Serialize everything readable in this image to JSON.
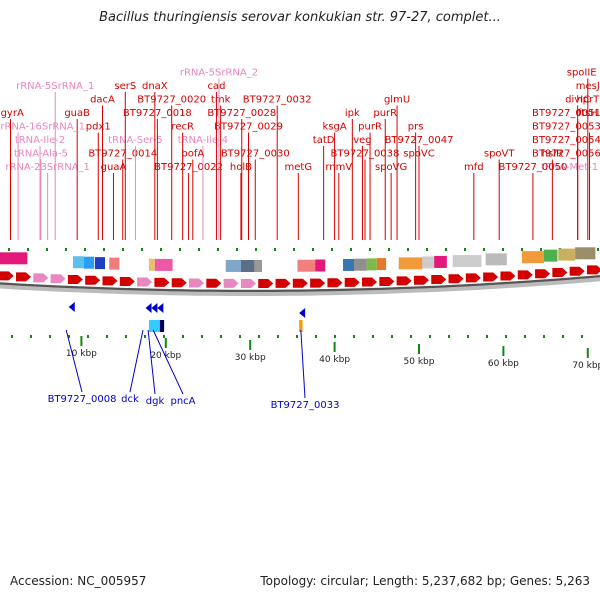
{
  "title": "Bacillus thuringiensis serovar konkukian str. 97-27, complet...",
  "footer": {
    "accession": "Accession: NC_005957",
    "topology": "Topology: circular; Length: 5,237,682 bp; Genes: 5,263"
  },
  "colors": {
    "gene": "#d40000",
    "rna": "#e887c0",
    "minus": "#0000cc",
    "axis": "#888888",
    "tick": "#118811"
  },
  "scale": {
    "unit": "kbp",
    "ticks": [
      10,
      20,
      30,
      40,
      50,
      60,
      70
    ]
  },
  "upper_labels": [
    {
      "text": "BT9727_0022",
      "kb": 22.7,
      "type": "gene"
    },
    {
      "text": "BT9727_0030",
      "kb": 30.6,
      "type": "gene"
    },
    {
      "text": "tRNA-Met-1",
      "kb": 73.4,
      "type": "rna"
    },
    {
      "text": "BT9727_0014",
      "kb": 14.9,
      "type": "gene"
    },
    {
      "text": "tRNA-Ile-4",
      "kb": 24.4,
      "type": "rna"
    },
    {
      "text": "BT9727_0029",
      "kb": 29.8,
      "type": "gene"
    },
    {
      "text": "BT9727_0056",
      "kb": 72.4,
      "type": "gene"
    },
    {
      "text": "rRNA-23SrRNA_1",
      "kb": 6.0,
      "type": "rna"
    },
    {
      "text": "tRNA-Ser-5",
      "kb": 16.4,
      "type": "rna"
    },
    {
      "text": "bofA",
      "kb": 23.2,
      "type": "gene"
    },
    {
      "text": "spoVG",
      "kb": 46.7,
      "type": "gene"
    },
    {
      "text": "pdx1",
      "kb": 12.0,
      "type": "gene"
    },
    {
      "text": "BT9727_0028",
      "kb": 29.0,
      "type": "gene"
    },
    {
      "text": "BT9727_0038",
      "kb": 43.6,
      "type": "gene"
    },
    {
      "text": "BT9727_0054",
      "kb": 71.6,
      "type": "gene"
    },
    {
      "text": "tRNA-Ala-5",
      "kb": 5.2,
      "type": "rna"
    },
    {
      "text": "recR",
      "kb": 22.0,
      "type": "gene"
    },
    {
      "text": "holB",
      "kb": 28.9,
      "type": "gene"
    },
    {
      "text": "rnmV",
      "kb": 40.5,
      "type": "gene"
    },
    {
      "text": "BT9727_0047",
      "kb": 50.0,
      "type": "gene"
    },
    {
      "text": "BT9727_0053",
      "kb": 70.2,
      "type": "gene"
    },
    {
      "text": "tRNA-Ile-2",
      "kb": 5.1,
      "type": "rna"
    },
    {
      "text": "guaB",
      "kb": 9.5,
      "type": "gene"
    },
    {
      "text": "guaA",
      "kb": 13.8,
      "type": "gene"
    },
    {
      "text": "BT9727_0020",
      "kb": 20.7,
      "type": "gene"
    },
    {
      "text": "tmk",
      "kb": 26.5,
      "type": "gene"
    },
    {
      "text": "tatD",
      "kb": 38.7,
      "type": "gene"
    },
    {
      "text": "purR",
      "kb": 44.2,
      "type": "gene"
    },
    {
      "text": "BT9727_0051",
      "kb": 68.8,
      "type": "gene"
    },
    {
      "text": "dacA",
      "kb": 12.5,
      "type": "gene"
    },
    {
      "text": "BT9727_0018",
      "kb": 19.0,
      "type": "gene"
    },
    {
      "text": "spoVC",
      "kb": 50.0,
      "type": "gene"
    },
    {
      "text": "rRNA-16SrRNA_1",
      "kb": 2.5,
      "type": "rna"
    },
    {
      "text": "cad",
      "kb": 26.0,
      "type": "gene"
    },
    {
      "text": "BT9727_0032",
      "kb": 33.2,
      "type": "gene"
    },
    {
      "text": "veg",
      "kb": 43.3,
      "type": "gene"
    },
    {
      "text": "ksgA",
      "kb": 40.0,
      "type": "gene"
    },
    {
      "text": "BT9727_0050",
      "kb": 63.5,
      "type": "gene"
    },
    {
      "text": "hprT",
      "kb": 74.5,
      "type": "gene"
    },
    {
      "text": "purR",
      "kb": 46.0,
      "type": "gene"
    },
    {
      "text": "prs",
      "kb": 49.6,
      "type": "gene"
    },
    {
      "text": "divIC",
      "kb": 68.8,
      "type": "gene"
    },
    {
      "text": "gyrA",
      "kb": 1.6,
      "type": "gene"
    },
    {
      "text": "rRNA-5SrRNA_1",
      "kb": 6.9,
      "type": "rna"
    },
    {
      "text": "serS",
      "kb": 15.2,
      "type": "gene"
    },
    {
      "text": "dnaX",
      "kb": 18.7,
      "type": "gene"
    },
    {
      "text": "rRNA-5SrRNA_2",
      "kb": 26.3,
      "type": "rna"
    },
    {
      "text": "metG",
      "kb": 35.7,
      "type": "gene"
    },
    {
      "text": "ipk",
      "kb": 42.1,
      "type": "gene"
    },
    {
      "text": "glmU",
      "kb": 47.4,
      "type": "gene"
    },
    {
      "text": "spoVT",
      "kb": 59.5,
      "type": "gene"
    },
    {
      "text": "mesJ",
      "kb": 72.3,
      "type": "gene"
    },
    {
      "text": "hslR",
      "kb": 65.8,
      "type": "gene"
    },
    {
      "text": "spoIIE",
      "kb": 70.0,
      "type": "gene"
    },
    {
      "text": "mfd",
      "kb": 56.5,
      "type": "gene"
    },
    {
      "text": "ftsH",
      "kb": 75.0,
      "type": "gene"
    }
  ],
  "lower_labels": [
    {
      "text": "BT9727_0008",
      "kb": 8.2
    },
    {
      "text": "dck",
      "kb": 17.3
    },
    {
      "text": "dgk",
      "kb": 17.9
    },
    {
      "text": "pncA",
      "kb": 18.5
    },
    {
      "text": "BT9727_0033",
      "kb": 36.0
    }
  ],
  "upper_blocks": [
    {
      "kb": 0.0,
      "len": 3.6,
      "color": "#e2197a"
    },
    {
      "kb": 9.0,
      "len": 1.3,
      "color": "#5bc0eb"
    },
    {
      "kb": 10.3,
      "len": 1.2,
      "color": "#2a9df4"
    },
    {
      "kb": 11.6,
      "len": 1.2,
      "color": "#1f3fbf"
    },
    {
      "kb": 13.3,
      "len": 1.2,
      "color": "#f07b7b"
    },
    {
      "kb": 18.0,
      "len": 0.7,
      "color": "#e8c06a"
    },
    {
      "kb": 18.7,
      "len": 2.1,
      "color": "#ec5aa6"
    },
    {
      "kb": 27.1,
      "len": 1.8,
      "color": "#7fa7c9"
    },
    {
      "kb": 28.9,
      "len": 1.6,
      "color": "#5f6e88"
    },
    {
      "kb": 30.5,
      "len": 0.9,
      "color": "#999999"
    },
    {
      "kb": 35.6,
      "len": 2.1,
      "color": "#f08080"
    },
    {
      "kb": 37.7,
      "len": 1.2,
      "color": "#e2197a"
    },
    {
      "kb": 41.0,
      "len": 1.3,
      "color": "#3a75b3"
    },
    {
      "kb": 42.3,
      "len": 1.5,
      "color": "#8f8f8f"
    },
    {
      "kb": 43.8,
      "len": 1.2,
      "color": "#7cba4a"
    },
    {
      "kb": 45.0,
      "len": 1.1,
      "color": "#e27a2a"
    },
    {
      "kb": 47.6,
      "len": 2.8,
      "color": "#f09a3a"
    },
    {
      "kb": 50.4,
      "len": 1.4,
      "color": "#cccccc"
    },
    {
      "kb": 51.8,
      "len": 1.5,
      "color": "#e2197a"
    },
    {
      "kb": 54.0,
      "len": 3.4,
      "color": "#cccccc"
    },
    {
      "kb": 57.9,
      "len": 2.5,
      "color": "#bbbbbb"
    },
    {
      "kb": 62.2,
      "len": 2.6,
      "color": "#f09a3a"
    },
    {
      "kb": 64.8,
      "len": 1.6,
      "color": "#4caf50"
    },
    {
      "kb": 66.5,
      "len": 2.0,
      "color": "#c9b060"
    },
    {
      "kb": 68.5,
      "len": 2.4,
      "color": "#9b8f6a"
    }
  ],
  "lower_blocks": [
    {
      "kb": 18.0,
      "len": 1.3,
      "color": "#33ccff"
    },
    {
      "kb": 19.3,
      "len": 0.5,
      "color": "#00005a"
    },
    {
      "kb": 35.8,
      "len": 0.4,
      "color": "#ff9900"
    }
  ]
}
